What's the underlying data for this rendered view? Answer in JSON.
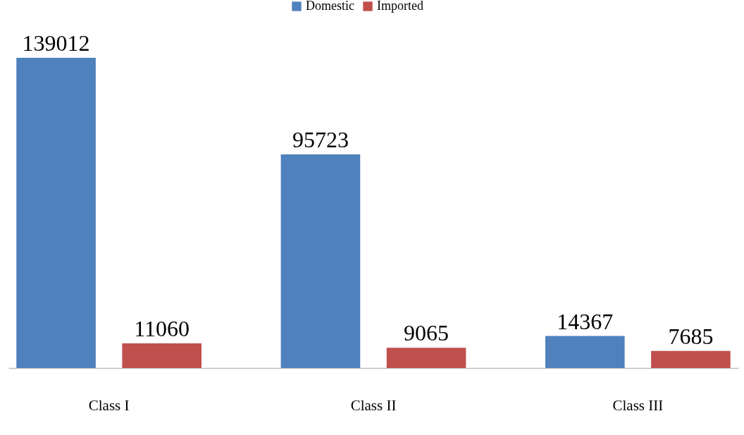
{
  "chart_data": {
    "type": "bar",
    "categories": [
      "Class I",
      "Class II",
      "Class III"
    ],
    "series": [
      {
        "name": "Domestic",
        "color": "#4f81bd",
        "values": [
          139012,
          95723,
          14367
        ]
      },
      {
        "name": "Imported",
        "color": "#c0504d",
        "values": [
          11060,
          9065,
          7685
        ]
      }
    ],
    "data_labels": true,
    "legend": "top",
    "grid": false
  }
}
